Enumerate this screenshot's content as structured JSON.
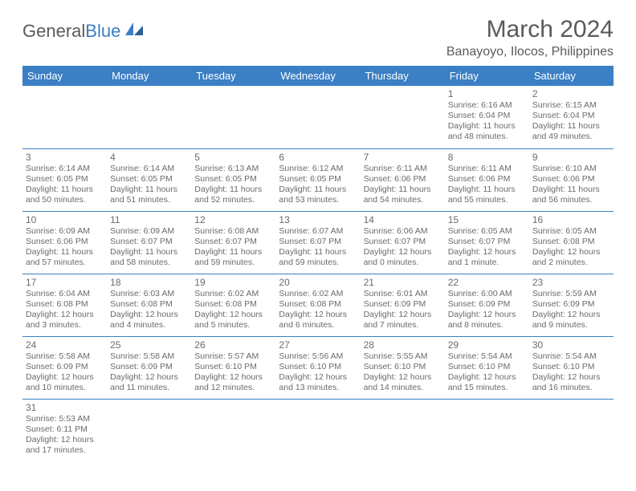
{
  "logo": {
    "text1": "General",
    "text2": "Blue"
  },
  "title": "March 2024",
  "location": "Banayoyo, Ilocos, Philippines",
  "colors": {
    "header_bg": "#3b7fc4",
    "header_text": "#ffffff",
    "cell_border": "#3b7fc4",
    "text_gray": "#6b6b6b",
    "title_gray": "#5a5a5a",
    "bg": "#ffffff"
  },
  "weekdays": [
    "Sunday",
    "Monday",
    "Tuesday",
    "Wednesday",
    "Thursday",
    "Friday",
    "Saturday"
  ],
  "weeks": [
    [
      null,
      null,
      null,
      null,
      null,
      {
        "n": "1",
        "sr": "Sunrise: 6:16 AM",
        "ss": "Sunset: 6:04 PM",
        "dl": "Daylight: 11 hours and 48 minutes."
      },
      {
        "n": "2",
        "sr": "Sunrise: 6:15 AM",
        "ss": "Sunset: 6:04 PM",
        "dl": "Daylight: 11 hours and 49 minutes."
      }
    ],
    [
      {
        "n": "3",
        "sr": "Sunrise: 6:14 AM",
        "ss": "Sunset: 6:05 PM",
        "dl": "Daylight: 11 hours and 50 minutes."
      },
      {
        "n": "4",
        "sr": "Sunrise: 6:14 AM",
        "ss": "Sunset: 6:05 PM",
        "dl": "Daylight: 11 hours and 51 minutes."
      },
      {
        "n": "5",
        "sr": "Sunrise: 6:13 AM",
        "ss": "Sunset: 6:05 PM",
        "dl": "Daylight: 11 hours and 52 minutes."
      },
      {
        "n": "6",
        "sr": "Sunrise: 6:12 AM",
        "ss": "Sunset: 6:05 PM",
        "dl": "Daylight: 11 hours and 53 minutes."
      },
      {
        "n": "7",
        "sr": "Sunrise: 6:11 AM",
        "ss": "Sunset: 6:06 PM",
        "dl": "Daylight: 11 hours and 54 minutes."
      },
      {
        "n": "8",
        "sr": "Sunrise: 6:11 AM",
        "ss": "Sunset: 6:06 PM",
        "dl": "Daylight: 11 hours and 55 minutes."
      },
      {
        "n": "9",
        "sr": "Sunrise: 6:10 AM",
        "ss": "Sunset: 6:06 PM",
        "dl": "Daylight: 11 hours and 56 minutes."
      }
    ],
    [
      {
        "n": "10",
        "sr": "Sunrise: 6:09 AM",
        "ss": "Sunset: 6:06 PM",
        "dl": "Daylight: 11 hours and 57 minutes."
      },
      {
        "n": "11",
        "sr": "Sunrise: 6:09 AM",
        "ss": "Sunset: 6:07 PM",
        "dl": "Daylight: 11 hours and 58 minutes."
      },
      {
        "n": "12",
        "sr": "Sunrise: 6:08 AM",
        "ss": "Sunset: 6:07 PM",
        "dl": "Daylight: 11 hours and 59 minutes."
      },
      {
        "n": "13",
        "sr": "Sunrise: 6:07 AM",
        "ss": "Sunset: 6:07 PM",
        "dl": "Daylight: 11 hours and 59 minutes."
      },
      {
        "n": "14",
        "sr": "Sunrise: 6:06 AM",
        "ss": "Sunset: 6:07 PM",
        "dl": "Daylight: 12 hours and 0 minutes."
      },
      {
        "n": "15",
        "sr": "Sunrise: 6:05 AM",
        "ss": "Sunset: 6:07 PM",
        "dl": "Daylight: 12 hours and 1 minute."
      },
      {
        "n": "16",
        "sr": "Sunrise: 6:05 AM",
        "ss": "Sunset: 6:08 PM",
        "dl": "Daylight: 12 hours and 2 minutes."
      }
    ],
    [
      {
        "n": "17",
        "sr": "Sunrise: 6:04 AM",
        "ss": "Sunset: 6:08 PM",
        "dl": "Daylight: 12 hours and 3 minutes."
      },
      {
        "n": "18",
        "sr": "Sunrise: 6:03 AM",
        "ss": "Sunset: 6:08 PM",
        "dl": "Daylight: 12 hours and 4 minutes."
      },
      {
        "n": "19",
        "sr": "Sunrise: 6:02 AM",
        "ss": "Sunset: 6:08 PM",
        "dl": "Daylight: 12 hours and 5 minutes."
      },
      {
        "n": "20",
        "sr": "Sunrise: 6:02 AM",
        "ss": "Sunset: 6:08 PM",
        "dl": "Daylight: 12 hours and 6 minutes."
      },
      {
        "n": "21",
        "sr": "Sunrise: 6:01 AM",
        "ss": "Sunset: 6:09 PM",
        "dl": "Daylight: 12 hours and 7 minutes."
      },
      {
        "n": "22",
        "sr": "Sunrise: 6:00 AM",
        "ss": "Sunset: 6:09 PM",
        "dl": "Daylight: 12 hours and 8 minutes."
      },
      {
        "n": "23",
        "sr": "Sunrise: 5:59 AM",
        "ss": "Sunset: 6:09 PM",
        "dl": "Daylight: 12 hours and 9 minutes."
      }
    ],
    [
      {
        "n": "24",
        "sr": "Sunrise: 5:58 AM",
        "ss": "Sunset: 6:09 PM",
        "dl": "Daylight: 12 hours and 10 minutes."
      },
      {
        "n": "25",
        "sr": "Sunrise: 5:58 AM",
        "ss": "Sunset: 6:09 PM",
        "dl": "Daylight: 12 hours and 11 minutes."
      },
      {
        "n": "26",
        "sr": "Sunrise: 5:57 AM",
        "ss": "Sunset: 6:10 PM",
        "dl": "Daylight: 12 hours and 12 minutes."
      },
      {
        "n": "27",
        "sr": "Sunrise: 5:56 AM",
        "ss": "Sunset: 6:10 PM",
        "dl": "Daylight: 12 hours and 13 minutes."
      },
      {
        "n": "28",
        "sr": "Sunrise: 5:55 AM",
        "ss": "Sunset: 6:10 PM",
        "dl": "Daylight: 12 hours and 14 minutes."
      },
      {
        "n": "29",
        "sr": "Sunrise: 5:54 AM",
        "ss": "Sunset: 6:10 PM",
        "dl": "Daylight: 12 hours and 15 minutes."
      },
      {
        "n": "30",
        "sr": "Sunrise: 5:54 AM",
        "ss": "Sunset: 6:10 PM",
        "dl": "Daylight: 12 hours and 16 minutes."
      }
    ],
    [
      {
        "n": "31",
        "sr": "Sunrise: 5:53 AM",
        "ss": "Sunset: 6:11 PM",
        "dl": "Daylight: 12 hours and 17 minutes."
      },
      null,
      null,
      null,
      null,
      null,
      null
    ]
  ]
}
